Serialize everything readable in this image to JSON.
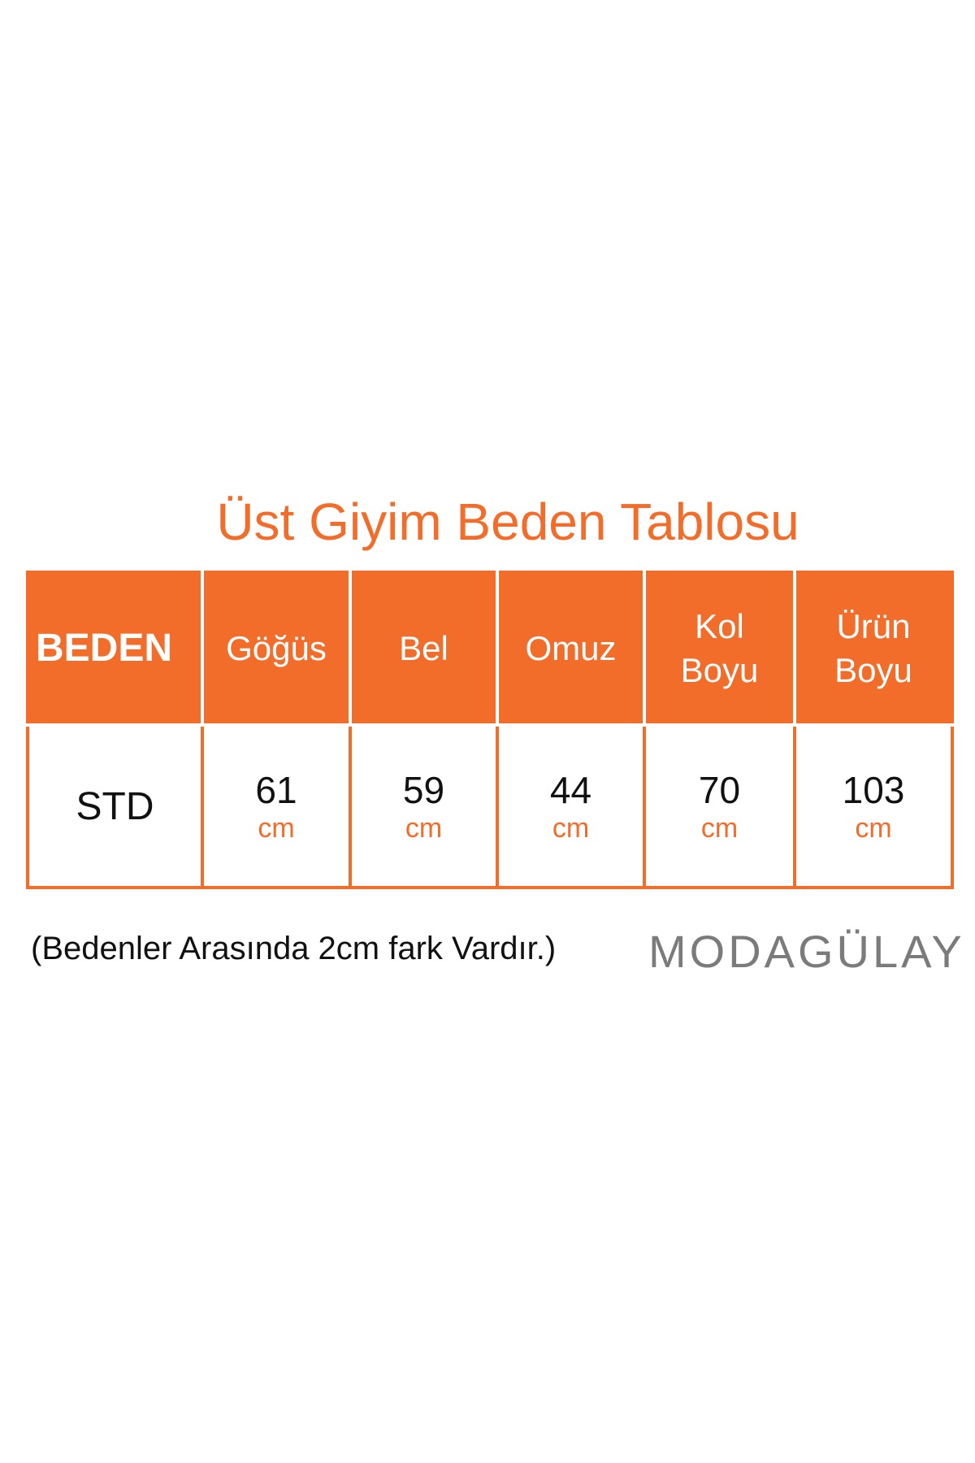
{
  "title": "Üst Giyim Beden Tablosu",
  "table": {
    "headers": [
      "BEDEN",
      "Göğüs",
      "Bel",
      "Omuz",
      "Kol Boyu",
      "Ürün Boyu"
    ],
    "rows": [
      {
        "size": "STD",
        "values": [
          "61",
          "59",
          "44",
          "70",
          "103"
        ],
        "unit": "cm"
      }
    ]
  },
  "note": "(Bedenler Arasında 2cm fark Vardır.)",
  "brand": "MODAGÜLAY",
  "colors": {
    "accent": "#f26c2a",
    "brand_gray": "#7b7b7b"
  }
}
